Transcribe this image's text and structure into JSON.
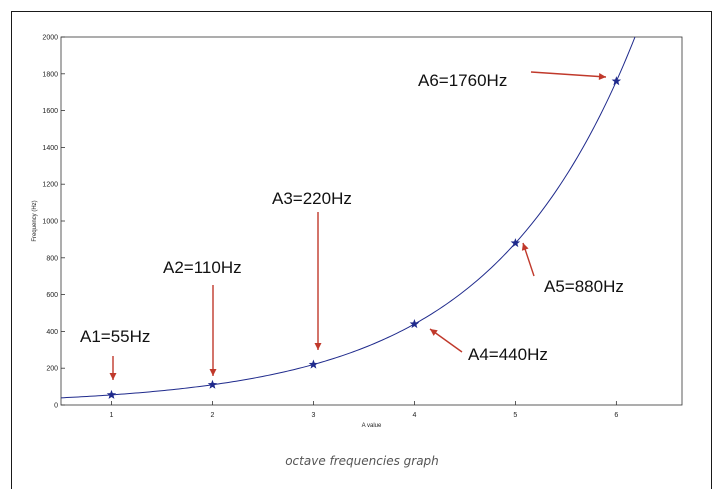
{
  "caption": "octave frequencies graph",
  "chart_data": {
    "type": "line",
    "title": "",
    "xlabel": "A value",
    "ylabel": "Frequency (Hz)",
    "xlim": [
      0.5,
      6.65
    ],
    "ylim": [
      0,
      2000
    ],
    "xticks": [
      1,
      2,
      3,
      4,
      5,
      6
    ],
    "yticks": [
      0,
      200,
      400,
      600,
      800,
      1000,
      1200,
      1400,
      1600,
      1800,
      2000
    ],
    "grid": false,
    "curve": {
      "formula": "27.5 * 2^x",
      "color": "#1f2a8c"
    },
    "series": [
      {
        "marker": "star",
        "color": "#1f2a8c",
        "x": [
          1,
          2,
          3,
          4,
          5,
          6
        ],
        "values": [
          55,
          110,
          220,
          440,
          880,
          1760
        ]
      }
    ],
    "annotations": [
      {
        "text": "A1=55Hz",
        "x": 1,
        "y": 55
      },
      {
        "text": "A2=110Hz",
        "x": 2,
        "y": 110
      },
      {
        "text": "A3=220Hz",
        "x": 3,
        "y": 220
      },
      {
        "text": "A4=440Hz",
        "x": 4,
        "y": 440
      },
      {
        "text": "A5=880Hz",
        "x": 5,
        "y": 880
      },
      {
        "text": "A6=1760Hz",
        "x": 6,
        "y": 1760
      }
    ],
    "arrow_color": "#c0392b"
  }
}
